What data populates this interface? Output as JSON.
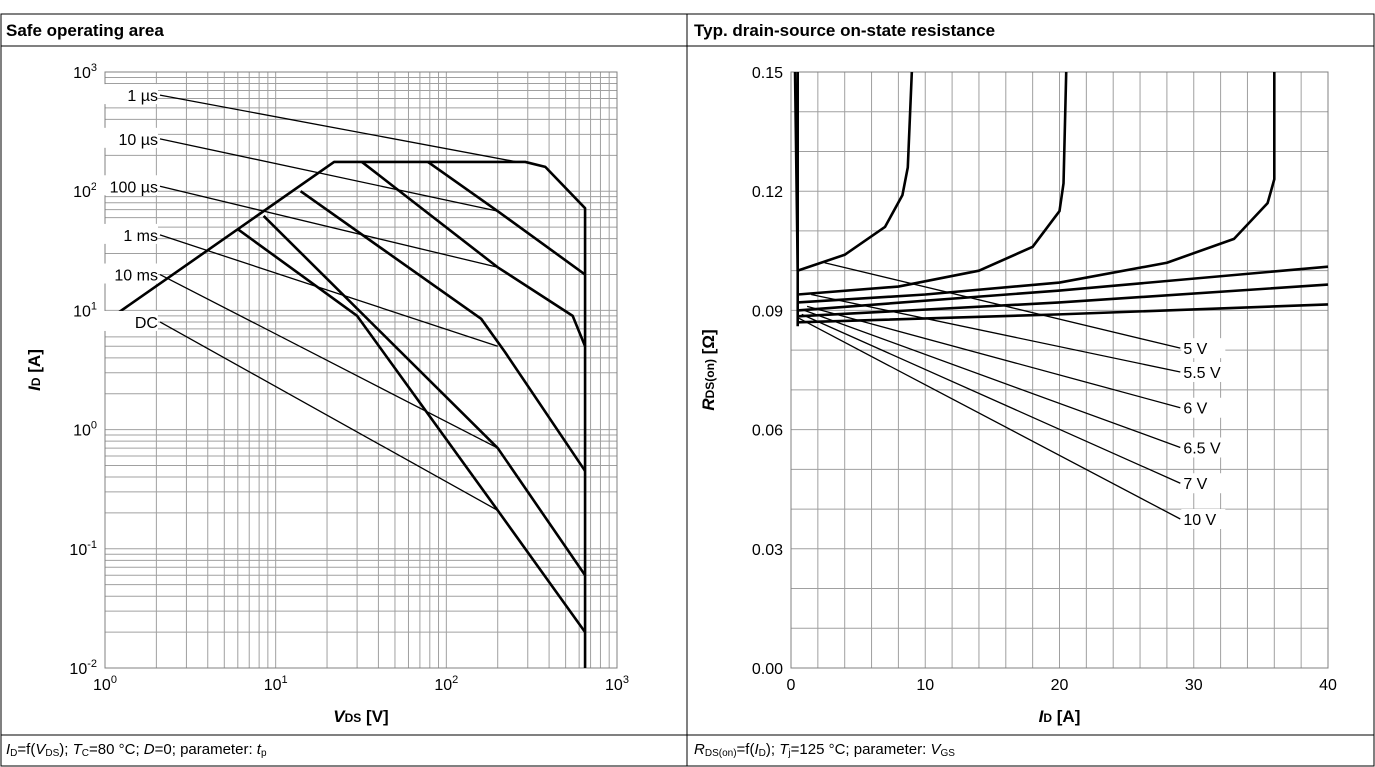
{
  "panels": [
    {
      "title": "Safe operating area",
      "caption": {
        "lhs_sym": "I",
        "lhs_sub": "D",
        "f": "=f(",
        "arg_sym": "V",
        "arg_sub": "DS",
        "rest1": "); ",
        "t_sym": "T",
        "t_sub": "C",
        "t_val": "=80 °C; ",
        "d_sym": "D",
        "d_val": "=0; parameter: ",
        "p_sym": "t",
        "p_sub": "p"
      }
    },
    {
      "title": "Typ. drain-source on-state resistance",
      "caption": {
        "lhs_sym": "R",
        "lhs_sub": "DS(on)",
        "f": "=f(",
        "arg_sym": "I",
        "arg_sub": "D",
        "rest1": "); ",
        "t_sym": "T",
        "t_sub": "j",
        "t_val": "=125 °C; parameter: ",
        "p_sym": "V",
        "p_sub": "GS"
      }
    }
  ],
  "chart_data": [
    {
      "type": "line",
      "title": "Safe operating area",
      "x_scale": "log",
      "y_scale": "log",
      "xlim": [
        1,
        1000
      ],
      "ylim": [
        0.01,
        1000
      ],
      "x_ticks": [
        {
          "base": "10",
          "exp": "0"
        },
        {
          "base": "10",
          "exp": "1"
        },
        {
          "base": "10",
          "exp": "2"
        },
        {
          "base": "10",
          "exp": "3"
        }
      ],
      "y_ticks": [
        {
          "base": "10",
          "exp": "-2"
        },
        {
          "base": "10",
          "exp": "-1"
        },
        {
          "base": "10",
          "exp": "0"
        },
        {
          "base": "10",
          "exp": "1"
        },
        {
          "base": "10",
          "exp": "2"
        },
        {
          "base": "10",
          "exp": "3"
        }
      ],
      "xlabel": {
        "sym": "V",
        "sub": "DS",
        "unit": " [V]"
      },
      "ylabel": {
        "sym": "I",
        "sub": "D",
        "unit": " [A]"
      },
      "grid": true,
      "series": [
        {
          "name": "1 µs",
          "label_at": [
            2.1,
            640
          ],
          "thin": [
            [
              2.1,
              640
            ],
            [
              260,
              176
            ]
          ],
          "thick": [
            [
              1,
              8
            ],
            [
              22,
              176
            ],
            [
              290,
              176
            ],
            [
              380,
              160
            ],
            [
              650,
              72
            ],
            [
              650,
              0.01
            ]
          ]
        },
        {
          "name": "10 µs",
          "label_at": [
            2.1,
            275
          ],
          "thin": [
            [
              2.1,
              275
            ],
            [
              200,
              68
            ]
          ],
          "thick": [
            [
              78,
              176
            ],
            [
              200,
              68
            ],
            [
              650,
              20
            ]
          ]
        },
        {
          "name": "100 µs",
          "label_at": [
            2.1,
            110
          ],
          "thin": [
            [
              2.1,
              110
            ],
            [
              200,
              23
            ]
          ],
          "thick": [
            [
              32,
              176
            ],
            [
              200,
              23
            ],
            [
              550,
              9
            ],
            [
              650,
              5
            ]
          ]
        },
        {
          "name": "1 ms",
          "label_at": [
            2.1,
            43
          ],
          "thin": [
            [
              2.1,
              43
            ],
            [
              200,
              5
            ]
          ],
          "thick": [
            [
              14,
              100
            ],
            [
              160,
              8.5
            ],
            [
              220,
              4.5
            ],
            [
              650,
              0.45
            ]
          ]
        },
        {
          "name": "10 ms",
          "label_at": [
            2.1,
            20
          ],
          "thin": [
            [
              2.1,
              20
            ],
            [
              200,
              0.7
            ]
          ],
          "thick": [
            [
              8.5,
              62
            ],
            [
              200,
              0.7
            ],
            [
              650,
              0.06
            ]
          ]
        },
        {
          "name": "DC",
          "label_at": [
            2.1,
            8
          ],
          "thin": [
            [
              2.1,
              8
            ],
            [
              200,
              0.21
            ]
          ],
          "thick": [
            [
              6,
              48
            ],
            [
              30,
              9
            ],
            [
              200,
              0.21
            ],
            [
              650,
              0.02
            ]
          ]
        }
      ]
    },
    {
      "type": "line",
      "title": "Typ. drain-source on-state resistance",
      "x_scale": "linear",
      "y_scale": "linear",
      "xlim": [
        0,
        40
      ],
      "ylim": [
        0.0,
        0.15
      ],
      "x_ticks": [
        "0",
        "10",
        "20",
        "30",
        "40"
      ],
      "y_ticks": [
        "0.00",
        "0.03",
        "0.06",
        "0.09",
        "0.12",
        "0.15"
      ],
      "xlabel": {
        "sym": "I",
        "sub": "D",
        "unit": " [A]"
      },
      "ylabel": {
        "sym": "R",
        "sub": "DS(on)",
        "unit": " [Ω]"
      },
      "grid": true,
      "series": [
        {
          "name": "5 V",
          "label_at": [
            29,
            0.0805
          ],
          "thin": [
            [
              2.5,
              0.102
            ],
            [
              29,
              0.0805
            ]
          ],
          "thick": [
            [
              0.3,
              0.15
            ],
            [
              0.5,
              0.1
            ],
            [
              4,
              0.104
            ],
            [
              7,
              0.111
            ],
            [
              8.3,
              0.119
            ],
            [
              8.7,
              0.126
            ],
            [
              9,
              0.15
            ]
          ]
        },
        {
          "name": "5.5 V",
          "label_at": [
            29,
            0.0745
          ],
          "thin": [
            [
              1.5,
              0.094
            ],
            [
              29,
              0.0745
            ]
          ],
          "thick": [
            [
              0.5,
              0.094
            ],
            [
              8,
              0.096
            ],
            [
              14,
              0.1
            ],
            [
              18,
              0.106
            ],
            [
              20,
              0.115
            ],
            [
              20.3,
              0.122
            ],
            [
              20.5,
              0.15
            ]
          ]
        },
        {
          "name": "6 V",
          "label_at": [
            29,
            0.0655
          ],
          "thin": [
            [
              1.2,
              0.091
            ],
            [
              29,
              0.0655
            ]
          ],
          "thick": [
            [
              0.5,
              0.092
            ],
            [
              10,
              0.094
            ],
            [
              20,
              0.097
            ],
            [
              28,
              0.102
            ],
            [
              33,
              0.108
            ],
            [
              35.5,
              0.117
            ],
            [
              36,
              0.123
            ],
            [
              36,
              0.15
            ]
          ]
        },
        {
          "name": "6.5 V",
          "label_at": [
            29,
            0.0555
          ],
          "thin": [
            [
              1.0,
              0.09
            ],
            [
              29,
              0.0555
            ]
          ],
          "thick": [
            [
              0.5,
              0.09
            ],
            [
              20,
              0.095
            ],
            [
              40,
              0.101
            ]
          ]
        },
        {
          "name": "7 V",
          "label_at": [
            29,
            0.0465
          ],
          "thin": [
            [
              0.8,
              0.089
            ],
            [
              29,
              0.0465
            ]
          ],
          "thick": [
            [
              0.5,
              0.0885
            ],
            [
              20,
              0.092
            ],
            [
              40,
              0.0965
            ]
          ]
        },
        {
          "name": "10 V",
          "label_at": [
            29,
            0.0375
          ],
          "thin": [
            [
              0.6,
              0.088
            ],
            [
              29,
              0.0375
            ]
          ],
          "thick": [
            [
              0.5,
              0.087
            ],
            [
              20,
              0.089
            ],
            [
              40,
              0.0915
            ]
          ]
        }
      ]
    }
  ]
}
